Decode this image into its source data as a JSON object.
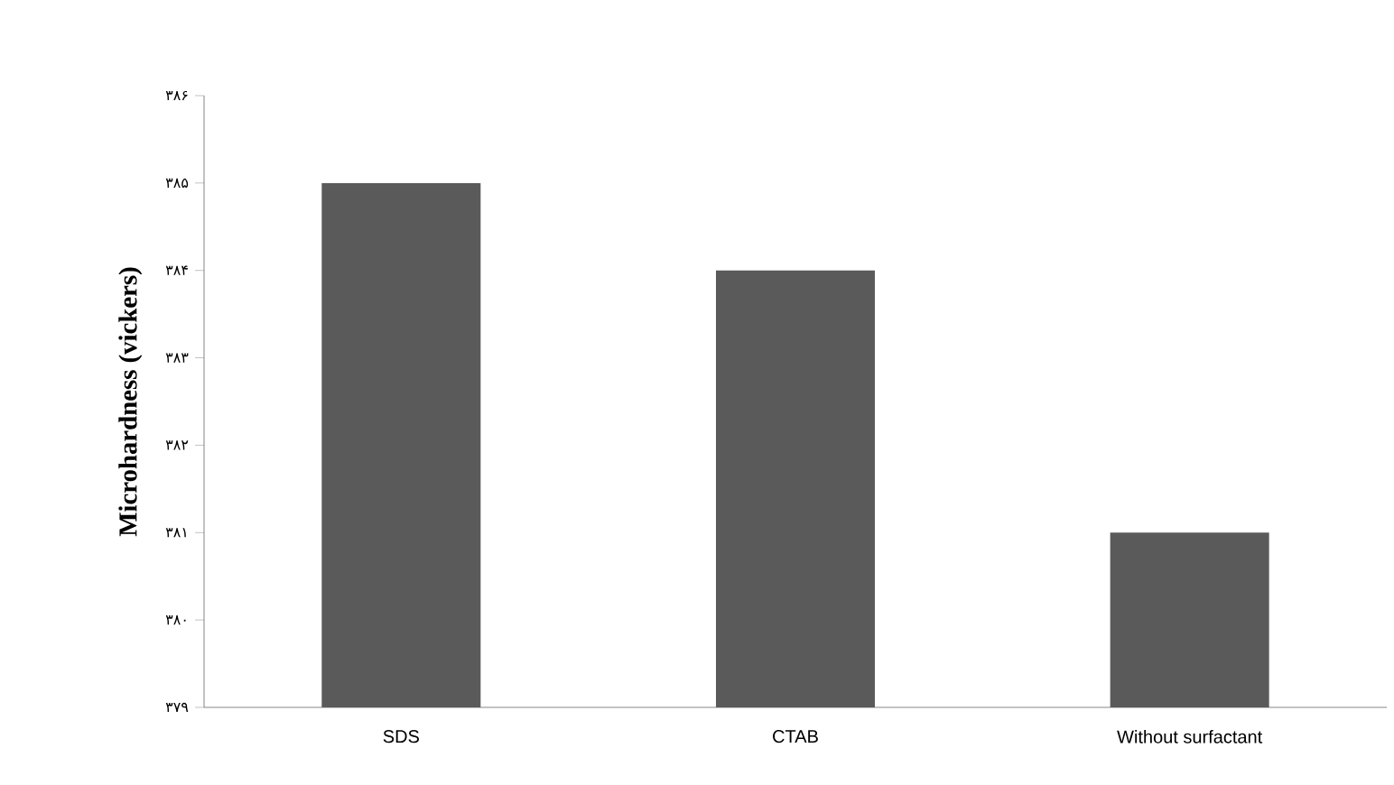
{
  "chart_data": {
    "type": "bar",
    "ylabel": "Microhardness (vickers)",
    "categories": [
      "SDS",
      "CTAB",
      "Without surfactant"
    ],
    "values": [
      385,
      384,
      381
    ],
    "color": "#5a5a5a",
    "ylim": [
      379,
      386
    ],
    "yticks": [
      {
        "value": 379,
        "label": "۳۷۹"
      },
      {
        "value": 380,
        "label": "۳۸۰"
      },
      {
        "value": 381,
        "label": "۳۸۱"
      },
      {
        "value": 382,
        "label": "۳۸۲"
      },
      {
        "value": 383,
        "label": "۳۸۳"
      },
      {
        "value": 384,
        "label": "۳۸۴"
      },
      {
        "value": 385,
        "label": "۳۸۵"
      },
      {
        "value": 386,
        "label": "۳۸۶"
      }
    ],
    "grid": false
  }
}
